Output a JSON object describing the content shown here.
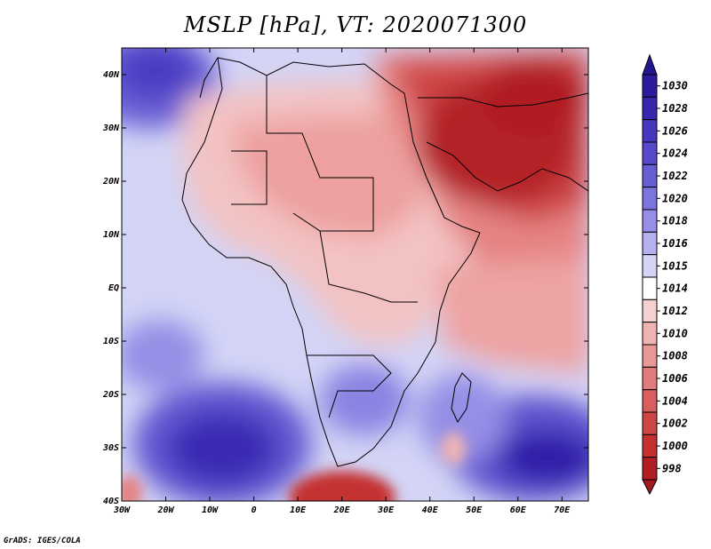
{
  "title": "MSLP [hPa], VT: 2020071300",
  "credit": "GrADS: IGES/COLA",
  "map": {
    "lon_range": [
      -30,
      76
    ],
    "lat_range": [
      -40,
      45
    ],
    "lon_labels": [
      "30W",
      "20W",
      "10W",
      "0",
      "10E",
      "20E",
      "30E",
      "40E",
      "50E",
      "60E",
      "70E"
    ],
    "lon_values": [
      -30,
      -20,
      -10,
      0,
      10,
      20,
      30,
      40,
      50,
      60,
      70
    ],
    "lat_labels": [
      "40N",
      "30N",
      "20N",
      "10N",
      "EQ",
      "10S",
      "20S",
      "30S",
      "40S"
    ],
    "lat_values": [
      40,
      30,
      20,
      10,
      0,
      -10,
      -20,
      -30,
      -40
    ]
  },
  "colorbar": {
    "labels": [
      "1030",
      "1028",
      "1026",
      "1024",
      "1022",
      "1020",
      "1018",
      "1016",
      "1015",
      "1014",
      "1012",
      "1010",
      "1008",
      "1006",
      "1004",
      "1002",
      "1000",
      "998"
    ],
    "colors": [
      "#2b1b9e",
      "#3726b0",
      "#4637c0",
      "#5749cc",
      "#685ed6",
      "#7c74df",
      "#958fe6",
      "#b3b1ee",
      "#d3d4f6",
      "#ffffff",
      "#f6d1d1",
      "#f0b3b3",
      "#ea9797",
      "#e27b7b",
      "#d95f5f",
      "#cf4646",
      "#c53030",
      "#b11f24"
    ],
    "top_arrow_color": "#24168f",
    "bottom_arrow_color": "#a3191d"
  }
}
